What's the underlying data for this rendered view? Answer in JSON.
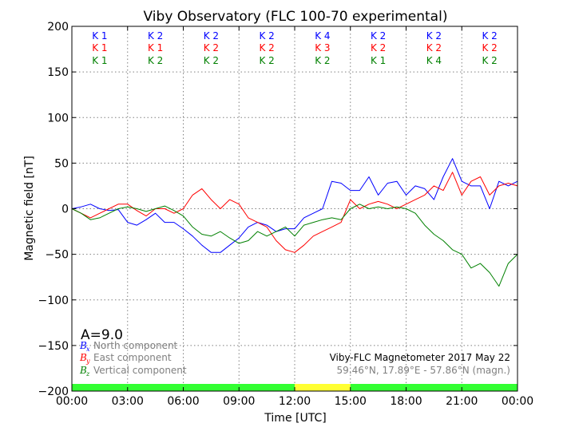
{
  "chart_data": {
    "type": "line",
    "title": "Viby Observatory (FLC 100-70 experimental)",
    "xlabel": "Time [UTC]",
    "ylabel": "Magnetic field [nT]",
    "xlim": [
      0,
      24
    ],
    "ylim": [
      -200,
      200
    ],
    "x_ticks": [
      {
        "v": 0,
        "label": "00:00"
      },
      {
        "v": 3,
        "label": "03:00"
      },
      {
        "v": 6,
        "label": "06:00"
      },
      {
        "v": 9,
        "label": "09:00"
      },
      {
        "v": 12,
        "label": "12:00"
      },
      {
        "v": 15,
        "label": "15:00"
      },
      {
        "v": 18,
        "label": "18:00"
      },
      {
        "v": 21,
        "label": "21:00"
      },
      {
        "v": 24,
        "label": "00:00"
      }
    ],
    "y_ticks": [
      {
        "v": 200,
        "label": "200"
      },
      {
        "v": 150,
        "label": "150"
      },
      {
        "v": 100,
        "label": "100"
      },
      {
        "v": 50,
        "label": "50"
      },
      {
        "v": 0,
        "label": "0"
      },
      {
        "v": -50,
        "label": "−50"
      },
      {
        "v": -100,
        "label": "−100"
      },
      {
        "v": -150,
        "label": "−150"
      },
      {
        "v": -200,
        "label": "−200"
      }
    ],
    "grid": true,
    "k_index_rows": [
      {
        "color": "#0000ff",
        "labels": [
          "K 1",
          "K 2",
          "K 2",
          "K 2",
          "K 4",
          "K 2",
          "K 2",
          "K 2"
        ]
      },
      {
        "color": "#ff0000",
        "labels": [
          "K 1",
          "K 1",
          "K 2",
          "K 2",
          "K 3",
          "K 2",
          "K 2",
          "K 2"
        ]
      },
      {
        "color": "#008000",
        "labels": [
          "K 1",
          "K 2",
          "K 2",
          "K 2",
          "K 2",
          "K 1",
          "K 4",
          "K 2"
        ]
      }
    ],
    "activity_bar": [
      {
        "from": 0,
        "to": 12,
        "color": "#33ff33"
      },
      {
        "from": 12,
        "to": 15,
        "color": "#ffff33"
      },
      {
        "from": 15,
        "to": 24,
        "color": "#33ff33"
      }
    ],
    "series": [
      {
        "name": "North component",
        "symbol": "B",
        "sub": "x",
        "color": "#0000ff",
        "x": [
          0,
          0.5,
          1,
          1.5,
          2,
          2.5,
          3,
          3.5,
          4,
          4.5,
          5,
          5.5,
          6,
          6.5,
          7,
          7.5,
          8,
          8.5,
          9,
          9.5,
          10,
          10.5,
          11,
          11.5,
          12,
          12.5,
          13,
          13.5,
          14,
          14.5,
          15,
          15.5,
          16,
          16.5,
          17,
          17.5,
          18,
          18.5,
          19,
          19.5,
          20,
          20.5,
          21,
          21.5,
          22,
          22.5,
          23,
          23.5,
          24
        ],
        "y": [
          0,
          2,
          5,
          0,
          -2,
          -1,
          -15,
          -18,
          -12,
          -5,
          -15,
          -15,
          -22,
          -30,
          -40,
          -48,
          -48,
          -40,
          -32,
          -20,
          -15,
          -18,
          -25,
          -22,
          -22,
          -10,
          -5,
          0,
          30,
          28,
          20,
          20,
          35,
          15,
          28,
          30,
          15,
          25,
          22,
          10,
          35,
          55,
          30,
          25,
          25,
          0,
          30,
          25,
          30
        ]
      },
      {
        "name": "East component",
        "symbol": "B",
        "sub": "y",
        "color": "#ff0000",
        "x": [
          0,
          0.5,
          1,
          1.5,
          2,
          2.5,
          3,
          3.5,
          4,
          4.5,
          5,
          5.5,
          6,
          6.5,
          7,
          7.5,
          8,
          8.5,
          9,
          9.5,
          10,
          10.5,
          11,
          11.5,
          12,
          12.5,
          13,
          13.5,
          14,
          14.5,
          15,
          15.5,
          16,
          16.5,
          17,
          17.5,
          18,
          18.5,
          19,
          19.5,
          20,
          20.5,
          21,
          21.5,
          22,
          22.5,
          23,
          23.5,
          24
        ],
        "y": [
          0,
          -5,
          -10,
          -5,
          0,
          5,
          5,
          -2,
          -8,
          0,
          0,
          -5,
          0,
          15,
          22,
          10,
          0,
          10,
          5,
          -10,
          -15,
          -20,
          -35,
          -45,
          -48,
          -40,
          -30,
          -25,
          -20,
          -15,
          10,
          0,
          5,
          8,
          5,
          0,
          5,
          10,
          15,
          25,
          20,
          40,
          15,
          30,
          35,
          15,
          25,
          28,
          25
        ]
      },
      {
        "name": "Vertical component",
        "symbol": "B",
        "sub": "z",
        "color": "#008000",
        "x": [
          0,
          0.5,
          1,
          1.5,
          2,
          2.5,
          3,
          3.5,
          4,
          4.5,
          5,
          5.5,
          6,
          6.5,
          7,
          7.5,
          8,
          8.5,
          9,
          9.5,
          10,
          10.5,
          11,
          11.5,
          12,
          12.5,
          13,
          13.5,
          14,
          14.5,
          15,
          15.5,
          16,
          16.5,
          17,
          17.5,
          18,
          18.5,
          19,
          19.5,
          20,
          20.5,
          21,
          21.5,
          22,
          22.5,
          23,
          23.5,
          24
        ],
        "y": [
          0,
          -5,
          -12,
          -10,
          -5,
          0,
          2,
          0,
          -3,
          0,
          3,
          -2,
          -8,
          -20,
          -28,
          -30,
          -25,
          -32,
          -38,
          -35,
          -25,
          -30,
          -25,
          -20,
          -30,
          -18,
          -15,
          -12,
          -10,
          -12,
          0,
          5,
          0,
          2,
          0,
          2,
          0,
          -5,
          -18,
          -28,
          -35,
          -45,
          -50,
          -65,
          -60,
          -70,
          -85,
          -60,
          -50
        ]
      }
    ],
    "a_index": "A=9.0",
    "station_info": "Viby-FLC Magnetometer 2017 May 22",
    "coordinates": "59.46°N, 17.89°E - 57.86°N (magn.)"
  }
}
